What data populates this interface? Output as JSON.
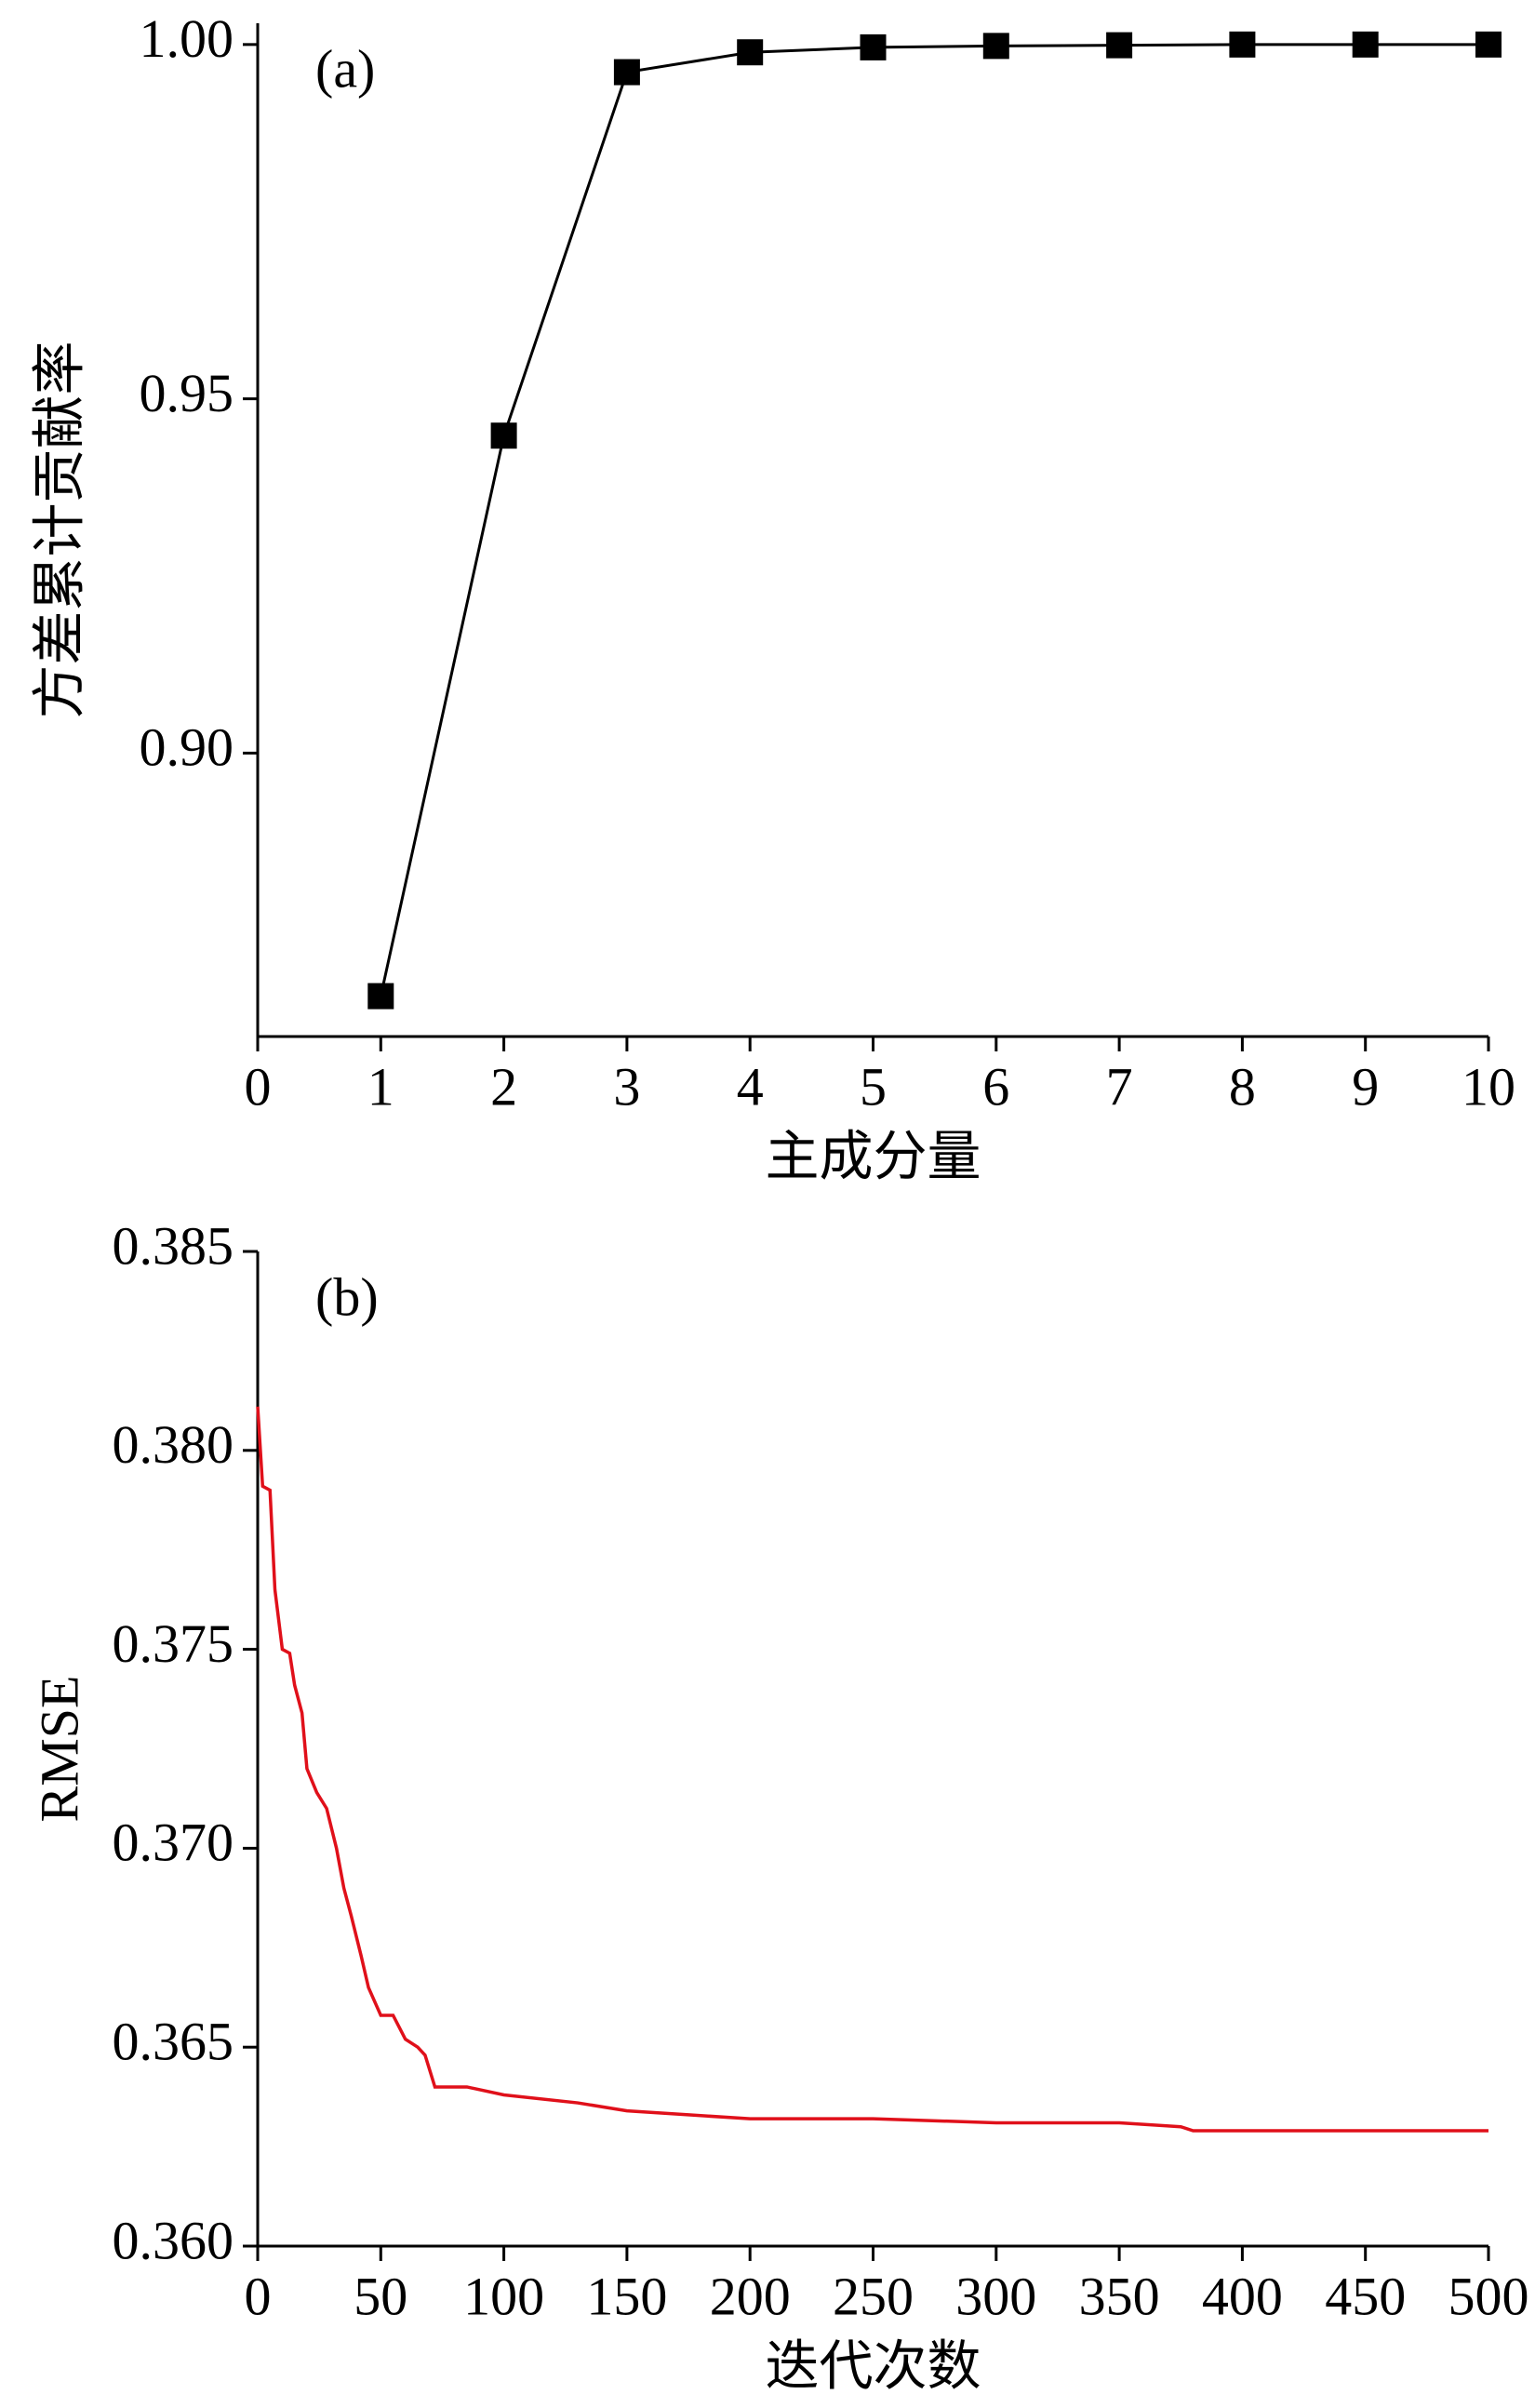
{
  "chart_data": [
    {
      "type": "line",
      "annotation": "(a)",
      "xlabel": "主成分量",
      "ylabel": "方差累计贡献率",
      "x": [
        1,
        2,
        3,
        4,
        5,
        6,
        7,
        8,
        9,
        10
      ],
      "series": [
        {
          "color": "#000000",
          "marker": "square",
          "values": [
            0.8657,
            0.9448,
            0.9961,
            0.9989,
            0.9996,
            0.9998,
            0.9999,
            1.0,
            1.0,
            1.0
          ]
        }
      ],
      "xlim": [
        0,
        10
      ],
      "xticks": [
        0,
        1,
        2,
        3,
        4,
        5,
        6,
        7,
        8,
        9,
        10
      ],
      "ylim": [
        0.86,
        1.003
      ],
      "yticks": [
        {
          "value": 0.9,
          "label": "0.90"
        },
        0.95,
        {
          "value": 1.0,
          "label": "1.00"
        }
      ]
    },
    {
      "type": "line",
      "annotation": "(b)",
      "xlabel": "迭代次数",
      "ylabel": "RMSE",
      "x": [
        0,
        2,
        5,
        7,
        10,
        13,
        15,
        18,
        20,
        24,
        28,
        32,
        35,
        38,
        42,
        45,
        50,
        55,
        60,
        65,
        68,
        72,
        85,
        100,
        130,
        150,
        175,
        200,
        250,
        300,
        350,
        375,
        380,
        500
      ],
      "series": [
        {
          "color": "#e0101a",
          "values": [
            0.3811,
            0.3791,
            0.379,
            0.3765,
            0.375,
            0.3749,
            0.3741,
            0.3734,
            0.372,
            0.3714,
            0.371,
            0.37,
            0.369,
            0.3683,
            0.3673,
            0.3665,
            0.3658,
            0.3658,
            0.3652,
            0.365,
            0.3648,
            0.364,
            0.364,
            0.3638,
            0.3636,
            0.3634,
            0.3633,
            0.3632,
            0.3632,
            0.3631,
            0.3631,
            0.363,
            0.3629,
            0.3629
          ]
        }
      ],
      "xlim": [
        0,
        500
      ],
      "xticks": [
        0,
        50,
        100,
        150,
        200,
        250,
        300,
        350,
        400,
        450,
        500
      ],
      "ylim": [
        0.36,
        0.385
      ],
      "yticks": [
        {
          "value": 0.36,
          "label": "0.360"
        },
        0.365,
        {
          "value": 0.37,
          "label": "0.370"
        },
        0.375,
        {
          "value": 0.38,
          "label": "0.380"
        },
        0.385
      ]
    }
  ]
}
